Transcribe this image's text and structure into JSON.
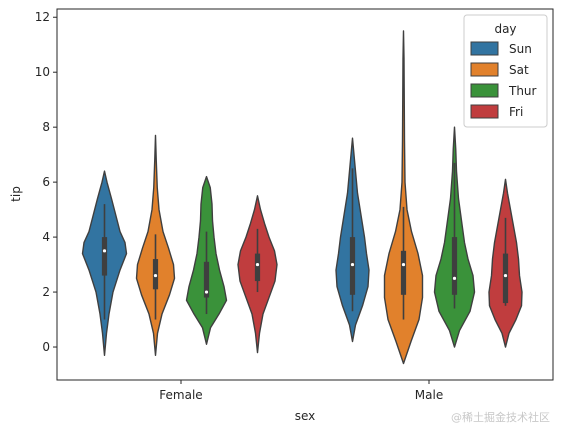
{
  "chart_data": {
    "type": "violin",
    "title": "",
    "xlabel": "sex",
    "ylabel": "tip",
    "ylim": [
      -1.2,
      12.3
    ],
    "yticks": [
      0,
      2,
      4,
      6,
      8,
      10,
      12
    ],
    "categories": [
      "Female",
      "Male"
    ],
    "legend": {
      "title": "day",
      "position": "top-right"
    },
    "series": [
      {
        "name": "Sun",
        "color": "#3274a1",
        "violins": [
          {
            "category": "Female",
            "min": -0.3,
            "max": 6.4,
            "q1": 2.6,
            "median": 3.5,
            "q3": 4.0,
            "whisker_low": 1.0,
            "whisker_high": 5.2,
            "profile": [
              [
                -0.3,
                0.0
              ],
              [
                0.5,
                0.08
              ],
              [
                1.2,
                0.18
              ],
              [
                2.0,
                0.34
              ],
              [
                2.8,
                0.62
              ],
              [
                3.4,
                0.88
              ],
              [
                3.8,
                0.82
              ],
              [
                4.2,
                0.62
              ],
              [
                4.8,
                0.45
              ],
              [
                5.4,
                0.28
              ],
              [
                6.0,
                0.1
              ],
              [
                6.4,
                0.0
              ]
            ]
          },
          {
            "category": "Male",
            "min": 0.2,
            "max": 7.6,
            "q1": 1.9,
            "median": 3.0,
            "q3": 4.0,
            "whisker_low": 1.3,
            "whisker_high": 6.5,
            "profile": [
              [
                0.2,
                0.0
              ],
              [
                0.8,
                0.12
              ],
              [
                1.5,
                0.4
              ],
              [
                2.2,
                0.62
              ],
              [
                2.8,
                0.66
              ],
              [
                3.4,
                0.56
              ],
              [
                4.0,
                0.48
              ],
              [
                4.8,
                0.34
              ],
              [
                5.6,
                0.2
              ],
              [
                6.4,
                0.12
              ],
              [
                7.0,
                0.06
              ],
              [
                7.6,
                0.0
              ]
            ]
          }
        ]
      },
      {
        "name": "Sat",
        "color": "#e1812c",
        "violins": [
          {
            "category": "Female",
            "min": -0.3,
            "max": 7.7,
            "q1": 2.1,
            "median": 2.6,
            "q3": 3.2,
            "whisker_low": 1.0,
            "whisker_high": 4.1,
            "profile": [
              [
                -0.3,
                0.0
              ],
              [
                0.5,
                0.08
              ],
              [
                1.2,
                0.26
              ],
              [
                1.9,
                0.56
              ],
              [
                2.5,
                0.76
              ],
              [
                3.0,
                0.72
              ],
              [
                3.6,
                0.52
              ],
              [
                4.2,
                0.3
              ],
              [
                5.0,
                0.14
              ],
              [
                5.8,
                0.07
              ],
              [
                6.8,
                0.03
              ],
              [
                7.7,
                0.0
              ]
            ]
          },
          {
            "category": "Male",
            "min": -0.6,
            "max": 11.5,
            "q1": 1.9,
            "median": 3.0,
            "q3": 3.5,
            "whisker_low": 1.0,
            "whisker_high": 5.1,
            "profile": [
              [
                -0.6,
                0.0
              ],
              [
                0.2,
                0.3
              ],
              [
                1.0,
                0.62
              ],
              [
                1.8,
                0.76
              ],
              [
                2.6,
                0.76
              ],
              [
                3.4,
                0.58
              ],
              [
                4.2,
                0.32
              ],
              [
                5.0,
                0.14
              ],
              [
                6.0,
                0.06
              ],
              [
                7.5,
                0.04
              ],
              [
                9.0,
                0.03
              ],
              [
                10.5,
                0.02
              ],
              [
                11.5,
                0.0
              ]
            ]
          }
        ]
      },
      {
        "name": "Thur",
        "color": "#3a923a",
        "violins": [
          {
            "category": "Female",
            "min": 0.1,
            "max": 6.2,
            "q1": 1.8,
            "median": 2.0,
            "q3": 3.1,
            "whisker_low": 1.2,
            "whisker_high": 4.2,
            "profile": [
              [
                0.1,
                0.0
              ],
              [
                0.7,
                0.16
              ],
              [
                1.2,
                0.5
              ],
              [
                1.7,
                0.8
              ],
              [
                2.2,
                0.7
              ],
              [
                2.8,
                0.52
              ],
              [
                3.4,
                0.38
              ],
              [
                4.0,
                0.3
              ],
              [
                4.6,
                0.24
              ],
              [
                5.2,
                0.22
              ],
              [
                5.8,
                0.15
              ],
              [
                6.2,
                0.0
              ]
            ]
          },
          {
            "category": "Male",
            "min": 0.0,
            "max": 8.0,
            "q1": 1.9,
            "median": 2.5,
            "q3": 4.0,
            "whisker_low": 1.4,
            "whisker_high": 6.7,
            "profile": [
              [
                0.0,
                0.0
              ],
              [
                0.6,
                0.2
              ],
              [
                1.3,
                0.62
              ],
              [
                2.0,
                0.8
              ],
              [
                2.6,
                0.74
              ],
              [
                3.2,
                0.54
              ],
              [
                3.8,
                0.4
              ],
              [
                4.6,
                0.28
              ],
              [
                5.4,
                0.16
              ],
              [
                6.4,
                0.08
              ],
              [
                7.2,
                0.05
              ],
              [
                8.0,
                0.0
              ]
            ]
          }
        ]
      },
      {
        "name": "Fri",
        "color": "#c03d3e",
        "violins": [
          {
            "category": "Female",
            "min": -0.2,
            "max": 5.5,
            "q1": 2.4,
            "median": 3.0,
            "q3": 3.4,
            "whisker_low": 2.0,
            "whisker_high": 4.3,
            "profile": [
              [
                -0.2,
                0.0
              ],
              [
                0.5,
                0.08
              ],
              [
                1.2,
                0.22
              ],
              [
                1.8,
                0.46
              ],
              [
                2.4,
                0.7
              ],
              [
                3.0,
                0.78
              ],
              [
                3.5,
                0.68
              ],
              [
                4.0,
                0.46
              ],
              [
                4.5,
                0.28
              ],
              [
                5.0,
                0.12
              ],
              [
                5.5,
                0.0
              ]
            ]
          },
          {
            "category": "Male",
            "min": 0.0,
            "max": 6.1,
            "q1": 1.6,
            "median": 2.6,
            "q3": 3.4,
            "whisker_low": 1.5,
            "whisker_high": 4.7,
            "profile": [
              [
                0.0,
                0.0
              ],
              [
                0.5,
                0.14
              ],
              [
                1.0,
                0.42
              ],
              [
                1.5,
                0.64
              ],
              [
                2.0,
                0.66
              ],
              [
                2.6,
                0.56
              ],
              [
                3.2,
                0.52
              ],
              [
                3.8,
                0.44
              ],
              [
                4.4,
                0.32
              ],
              [
                5.0,
                0.2
              ],
              [
                5.6,
                0.08
              ],
              [
                6.1,
                0.0
              ]
            ]
          }
        ]
      }
    ]
  },
  "watermark": "@稀土掘金技术社区"
}
